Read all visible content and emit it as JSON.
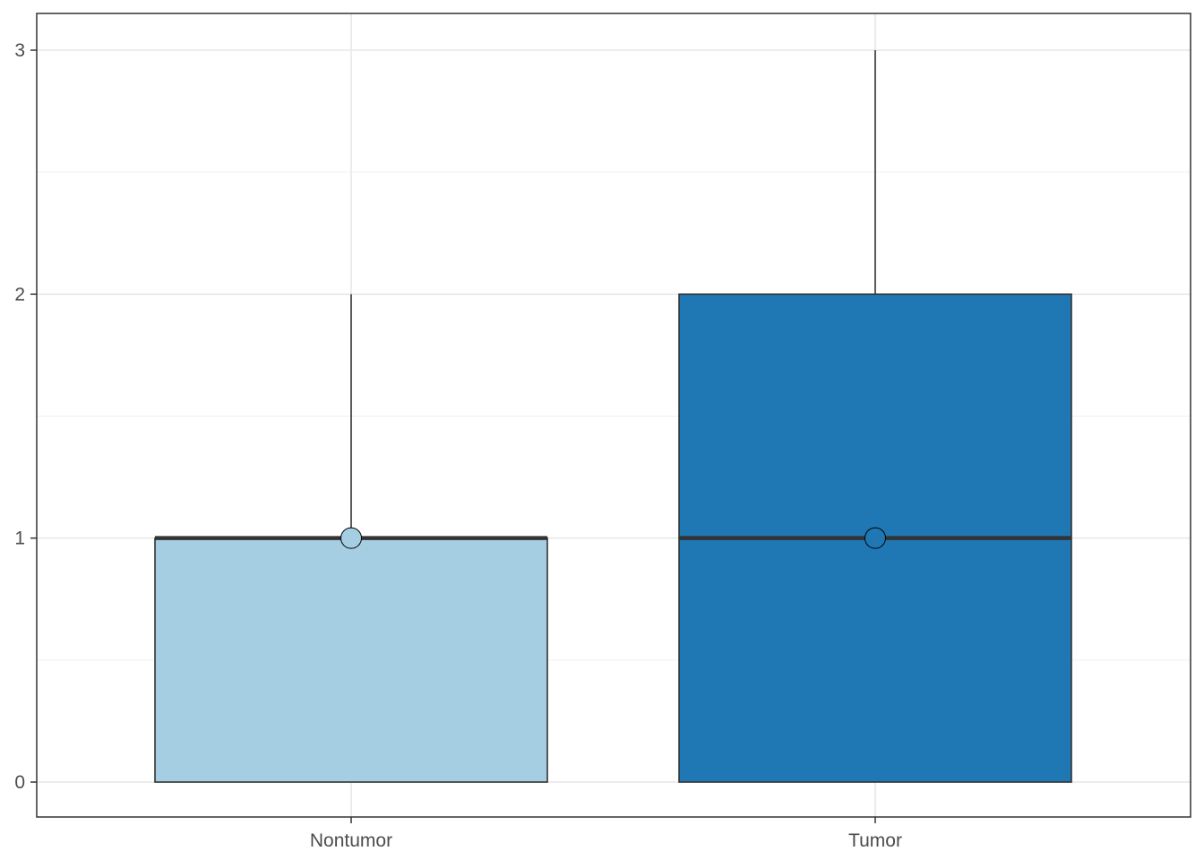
{
  "chart_data": {
    "type": "box",
    "categories": [
      "Nontumor",
      "Tumor"
    ],
    "boxes": [
      {
        "category": "Nontumor",
        "min": 0,
        "q1": 0,
        "median": 1,
        "q3": 1,
        "max": 2,
        "mean": 1,
        "color": "#a6cee3"
      },
      {
        "category": "Tumor",
        "min": 0,
        "q1": 0,
        "median": 1,
        "q3": 2,
        "max": 3,
        "mean": 1,
        "color": "#1f78b4"
      }
    ],
    "y_ticks": [
      "0",
      "1",
      "2",
      "3"
    ],
    "ylim": [
      -0.14,
      3.15
    ],
    "xlabel": "",
    "ylabel": "",
    "title": "",
    "grid": true,
    "legend": "none"
  }
}
